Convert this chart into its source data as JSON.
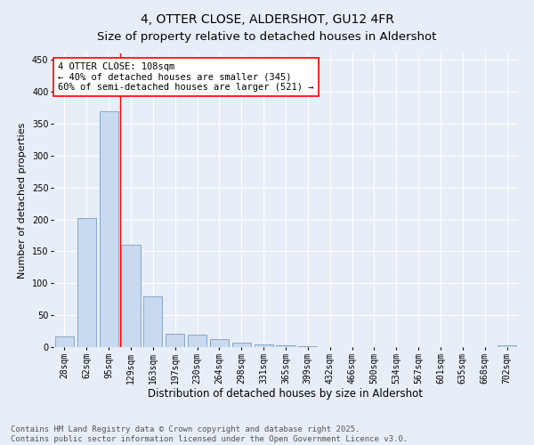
{
  "title": "4, OTTER CLOSE, ALDERSHOT, GU12 4FR",
  "subtitle": "Size of property relative to detached houses in Aldershot",
  "xlabel": "Distribution of detached houses by size in Aldershot",
  "ylabel": "Number of detached properties",
  "categories": [
    "28sqm",
    "62sqm",
    "95sqm",
    "129sqm",
    "163sqm",
    "197sqm",
    "230sqm",
    "264sqm",
    "298sqm",
    "331sqm",
    "365sqm",
    "399sqm",
    "432sqm",
    "466sqm",
    "500sqm",
    "534sqm",
    "567sqm",
    "601sqm",
    "635sqm",
    "668sqm",
    "702sqm"
  ],
  "values": [
    17,
    202,
    370,
    160,
    80,
    21,
    20,
    13,
    7,
    4,
    3,
    1,
    0,
    0,
    0,
    0,
    0,
    0,
    0,
    0,
    3
  ],
  "bar_color": "#c9d9f0",
  "bar_edge_color": "#7a9fc0",
  "vline_x": 2.5,
  "vline_color": "red",
  "annotation_text": "4 OTTER CLOSE: 108sqm\n← 40% of detached houses are smaller (345)\n60% of semi-detached houses are larger (521) →",
  "annotation_box_color": "white",
  "annotation_box_edge_color": "red",
  "ylim": [
    0,
    460
  ],
  "yticks": [
    0,
    50,
    100,
    150,
    200,
    250,
    300,
    350,
    400,
    450
  ],
  "background_color": "#e8eef7",
  "grid_color": "white",
  "footer_text": "Contains HM Land Registry data © Crown copyright and database right 2025.\nContains public sector information licensed under the Open Government Licence v3.0.",
  "title_fontsize": 10,
  "xlabel_fontsize": 8.5,
  "ylabel_fontsize": 8,
  "tick_fontsize": 7,
  "annotation_fontsize": 7.5,
  "footer_fontsize": 6.5
}
